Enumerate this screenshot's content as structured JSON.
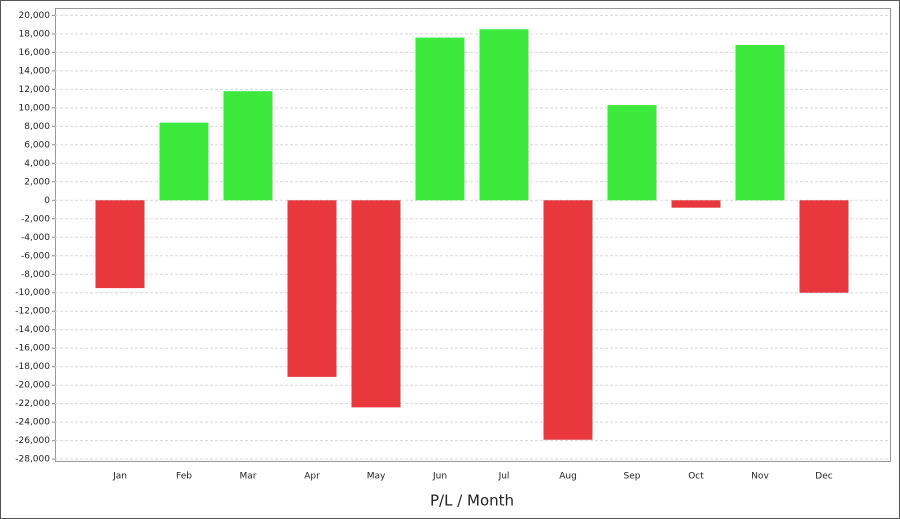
{
  "chart_data": {
    "type": "bar",
    "x_label": "P/L / Month",
    "categories": [
      "Jan",
      "Feb",
      "Mar",
      "Apr",
      "May",
      "Jun",
      "Jul",
      "Aug",
      "Sep",
      "Oct",
      "Nov",
      "Dec"
    ],
    "values": [
      -9500,
      8400,
      11800,
      -19100,
      -22400,
      17600,
      18500,
      -25900,
      10300,
      -800,
      16800,
      -10000
    ],
    "positive_color": "#3de83d",
    "negative_color": "#e8383d",
    "ylim": [
      -28200,
      20800
    ],
    "yticks": [
      {
        "value": 20000,
        "label": "20,000"
      },
      {
        "value": 18000,
        "label": "18,000"
      },
      {
        "value": 16000,
        "label": "16,000"
      },
      {
        "value": 14000,
        "label": "14,000"
      },
      {
        "value": 12000,
        "label": "12,000"
      },
      {
        "value": 10000,
        "label": "10,000"
      },
      {
        "value": 8000,
        "label": "8,000"
      },
      {
        "value": 6000,
        "label": "6,000"
      },
      {
        "value": 4000,
        "label": "4,000"
      },
      {
        "value": 2000,
        "label": "2,000"
      },
      0,
      {
        "value": -2000,
        "label": "-2,000"
      },
      {
        "value": -4000,
        "label": "-4,000"
      },
      {
        "value": -6000,
        "label": "-6,000"
      },
      {
        "value": -8000,
        "label": "-8,000"
      },
      {
        "value": -10000,
        "label": "-10,000"
      },
      {
        "value": -12000,
        "label": "-12,000"
      },
      {
        "value": -14000,
        "label": "-14,000"
      },
      {
        "value": -16000,
        "label": "-16,000"
      },
      {
        "value": -18000,
        "label": "-18,000"
      },
      {
        "value": -20000,
        "label": "-20,000"
      },
      {
        "value": -22000,
        "label": "-22,000"
      },
      {
        "value": -24000,
        "label": "-24,000"
      },
      {
        "value": -26000,
        "label": "-26,000"
      },
      {
        "value": -28000,
        "label": "-28,000"
      }
    ],
    "grid": true
  }
}
